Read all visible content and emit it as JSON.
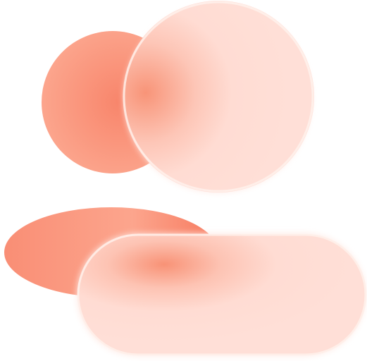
{
  "icon": {
    "name": "users-group-icon",
    "style": "glassmorphism",
    "colors": {
      "back_fill": "#F98D74",
      "back_fill_light": "#FBA88F",
      "front_fill": "#FFDDD5",
      "front_highlight": "#FFF2EE",
      "glow": "#F67A5E",
      "background": "#FFFFFF"
    }
  }
}
